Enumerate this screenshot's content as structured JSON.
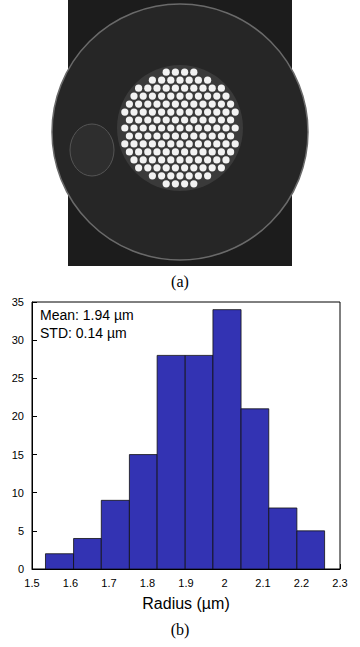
{
  "image": {
    "caption": "(a)"
  },
  "chart_data": {
    "type": "histogram",
    "caption": "(b)",
    "xlabel": "Radius (µm)",
    "annotations": [
      "Mean: 1.94 µm",
      "STD: 0.14 µm"
    ],
    "bins": [
      1.535,
      1.608,
      1.68,
      1.753,
      1.825,
      1.898,
      1.97,
      2.043,
      2.115,
      2.188,
      2.26
    ],
    "counts": [
      2,
      4,
      9,
      15,
      28,
      28,
      34,
      21,
      8,
      5
    ],
    "color": "#3333b3",
    "xlim": [
      1.5,
      2.3
    ],
    "xticks": [
      1.5,
      1.6,
      1.7,
      1.8,
      1.9,
      2,
      2.1,
      2.2,
      2.3
    ],
    "ylim": [
      0,
      35
    ],
    "yticks": [
      0,
      5,
      10,
      15,
      20,
      25,
      30,
      35
    ],
    "grid": false
  }
}
